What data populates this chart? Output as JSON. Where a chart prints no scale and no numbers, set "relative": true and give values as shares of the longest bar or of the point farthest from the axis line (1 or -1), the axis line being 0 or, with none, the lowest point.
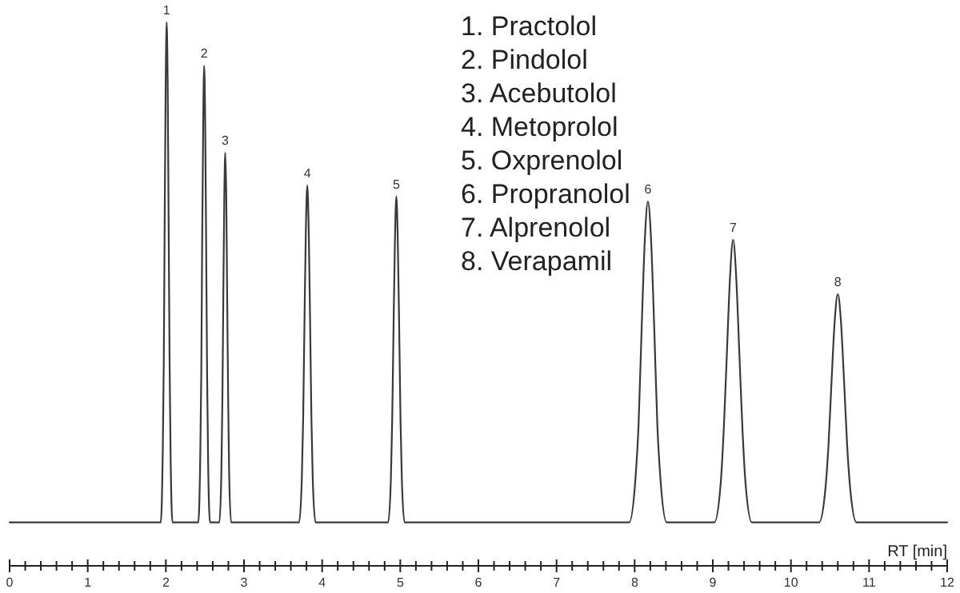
{
  "chart_data": {
    "type": "line",
    "relative": true,
    "xlabel": "RT [min]",
    "xlim": [
      0,
      12
    ],
    "xticks": [
      0,
      1,
      2,
      3,
      4,
      5,
      6,
      7,
      8,
      9,
      10,
      11,
      12,
      {
        "value": 0.2,
        "label": null
      },
      {
        "value": 0.4,
        "label": null
      },
      {
        "value": 0.6,
        "label": null
      },
      {
        "value": 0.8,
        "label": null
      },
      {
        "value": 1.2,
        "label": null
      },
      {
        "value": 1.4,
        "label": null
      },
      {
        "value": 1.6,
        "label": null
      },
      {
        "value": 1.8,
        "label": null
      },
      {
        "value": 2.2,
        "label": null
      },
      {
        "value": 2.4,
        "label": null
      },
      {
        "value": 2.6,
        "label": null
      },
      {
        "value": 2.8,
        "label": null
      },
      {
        "value": 3.2,
        "label": null
      },
      {
        "value": 3.4,
        "label": null
      },
      {
        "value": 3.6,
        "label": null
      },
      {
        "value": 3.8,
        "label": null
      },
      {
        "value": 4.2,
        "label": null
      },
      {
        "value": 4.4,
        "label": null
      },
      {
        "value": 4.6,
        "label": null
      },
      {
        "value": 4.8,
        "label": null
      },
      {
        "value": 5.2,
        "label": null
      },
      {
        "value": 5.4,
        "label": null
      },
      {
        "value": 5.6,
        "label": null
      },
      {
        "value": 5.8,
        "label": null
      },
      {
        "value": 6.2,
        "label": null
      },
      {
        "value": 6.4,
        "label": null
      },
      {
        "value": 6.6,
        "label": null
      },
      {
        "value": 6.8,
        "label": null
      },
      {
        "value": 7.2,
        "label": null
      },
      {
        "value": 7.4,
        "label": null
      },
      {
        "value": 7.6,
        "label": null
      },
      {
        "value": 7.8,
        "label": null
      },
      {
        "value": 8.2,
        "label": null
      },
      {
        "value": 8.4,
        "label": null
      },
      {
        "value": 8.6,
        "label": null
      },
      {
        "value": 8.8,
        "label": null
      },
      {
        "value": 9.2,
        "label": null
      },
      {
        "value": 9.4,
        "label": null
      },
      {
        "value": 9.6,
        "label": null
      },
      {
        "value": 9.8,
        "label": null
      },
      {
        "value": 10.2,
        "label": null
      },
      {
        "value": 10.4,
        "label": null
      },
      {
        "value": 10.6,
        "label": null
      },
      {
        "value": 10.8,
        "label": null
      },
      {
        "value": 11.2,
        "label": null
      },
      {
        "value": 11.4,
        "label": null
      },
      {
        "value": 11.6,
        "label": null
      },
      {
        "value": 11.8,
        "label": null
      }
    ],
    "x": [
      0,
      1.0,
      1.9,
      1.935,
      1.96,
      1.973,
      1.985,
      1.998,
      2.01,
      2.023,
      2.035,
      2.048,
      2.06,
      2.085,
      2.25,
      2.415,
      2.44,
      2.453,
      2.465,
      2.478,
      2.49,
      2.503,
      2.515,
      2.528,
      2.54,
      2.565,
      2.62,
      2.685,
      2.71,
      2.723,
      2.735,
      2.748,
      2.76,
      2.773,
      2.785,
      2.798,
      2.81,
      2.835,
      3.3,
      3.705,
      3.74,
      3.757,
      3.775,
      3.792,
      3.81,
      3.828,
      3.845,
      3.863,
      3.88,
      3.915,
      4.4,
      4.845,
      4.88,
      4.897,
      4.915,
      4.932,
      4.95,
      4.968,
      4.985,
      5.003,
      5.02,
      5.055,
      6.5,
      7.93,
      8.01,
      8.05,
      8.09,
      8.13,
      8.17,
      8.21,
      8.25,
      8.29,
      8.33,
      8.41,
      8.7,
      9.02,
      9.1,
      9.14,
      9.18,
      9.22,
      9.26,
      9.3,
      9.34,
      9.38,
      9.42,
      9.5,
      9.9,
      10.36,
      10.44,
      10.48,
      10.52,
      10.56,
      10.6,
      10.64,
      10.68,
      10.72,
      10.76,
      10.84,
      11.4,
      12
    ],
    "series": [
      {
        "color": "#3a3a3a",
        "values": [
          0.08,
          0.08,
          0.08,
          0.08,
          0.21,
          0.37,
          0.64,
          0.89,
          1,
          0.89,
          0.64,
          0.37,
          0.21,
          0.08,
          0.08,
          0.08,
          0.2,
          0.35,
          0.6,
          0.82,
          0.92,
          0.82,
          0.6,
          0.35,
          0.2,
          0.08,
          0.08,
          0.08,
          0.17,
          0.3,
          0.49,
          0.68,
          0.76,
          0.68,
          0.49,
          0.3,
          0.17,
          0.08,
          0.08,
          0.08,
          0.16,
          0.27,
          0.46,
          0.62,
          0.7,
          0.62,
          0.46,
          0.27,
          0.16,
          0.08,
          0.08,
          0.08,
          0.16,
          0.27,
          0.45,
          0.6,
          0.68,
          0.6,
          0.45,
          0.27,
          0.16,
          0.08,
          0.08,
          0.08,
          0.16,
          0.26,
          0.44,
          0.6,
          0.67,
          0.6,
          0.44,
          0.26,
          0.16,
          0.08,
          0.08,
          0.08,
          0.15,
          0.25,
          0.39,
          0.53,
          0.6,
          0.53,
          0.39,
          0.25,
          0.15,
          0.08,
          0.08,
          0.08,
          0.14,
          0.22,
          0.34,
          0.45,
          0.5,
          0.45,
          0.34,
          0.22,
          0.14,
          0.08,
          0.08,
          0.08
        ]
      }
    ],
    "annotations": [
      {
        "text": "1",
        "x": 2.01,
        "y": 1
      },
      {
        "text": "2",
        "x": 2.49,
        "y": 0.92
      },
      {
        "text": "3",
        "x": 2.76,
        "y": 0.76
      },
      {
        "text": "4",
        "x": 3.81,
        "y": 0.7
      },
      {
        "text": "5",
        "x": 4.95,
        "y": 0.68
      },
      {
        "text": "6",
        "x": 8.17,
        "y": 0.67
      },
      {
        "text": "7",
        "x": 9.26,
        "y": 0.6
      },
      {
        "text": "8",
        "x": 10.6,
        "y": 0.5
      },
      "1. Practolol",
      "2. Pindolol",
      "3. Acebutolol",
      "4. Metoprolol",
      "5. Oxprenolol",
      "6. Propranolol",
      "7. Alprenolol",
      "8. Verapamil"
    ]
  }
}
